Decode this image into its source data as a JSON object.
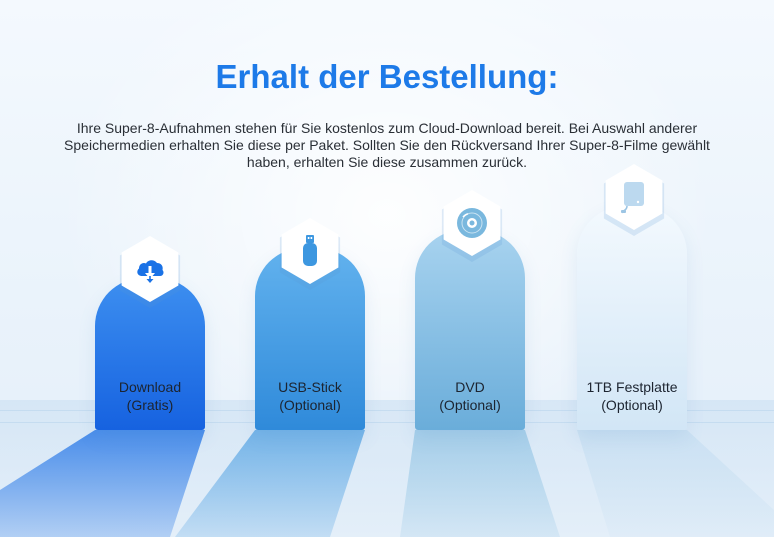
{
  "heading": "Erhalt der Bestellung:",
  "description": "Ihre Super-8-Aufnahmen stehen für Sie kostenlos zum Cloud-Download bereit. Bei Auswahl anderer Speichermedien erhalten Sie diese per Paket. Sollten Sie den Rückversand Ihrer Super-8-Filme gewählt haben, erhalten Sie diese zusammen zurück.",
  "options": [
    {
      "name": "Download",
      "note": "(Gratis)",
      "icon": "cloud-download-icon",
      "color": "#1a6fe6"
    },
    {
      "name": "USB-Stick",
      "note": "(Optional)",
      "icon": "usb-stick-icon",
      "color": "#3d97e0"
    },
    {
      "name": "DVD",
      "note": "(Optional)",
      "icon": "dvd-icon",
      "color": "#7ab8de"
    },
    {
      "name": "1TB Festplatte",
      "note": "(Optional)",
      "icon": "hard-drive-icon",
      "color": "#d7e9f7"
    }
  ]
}
